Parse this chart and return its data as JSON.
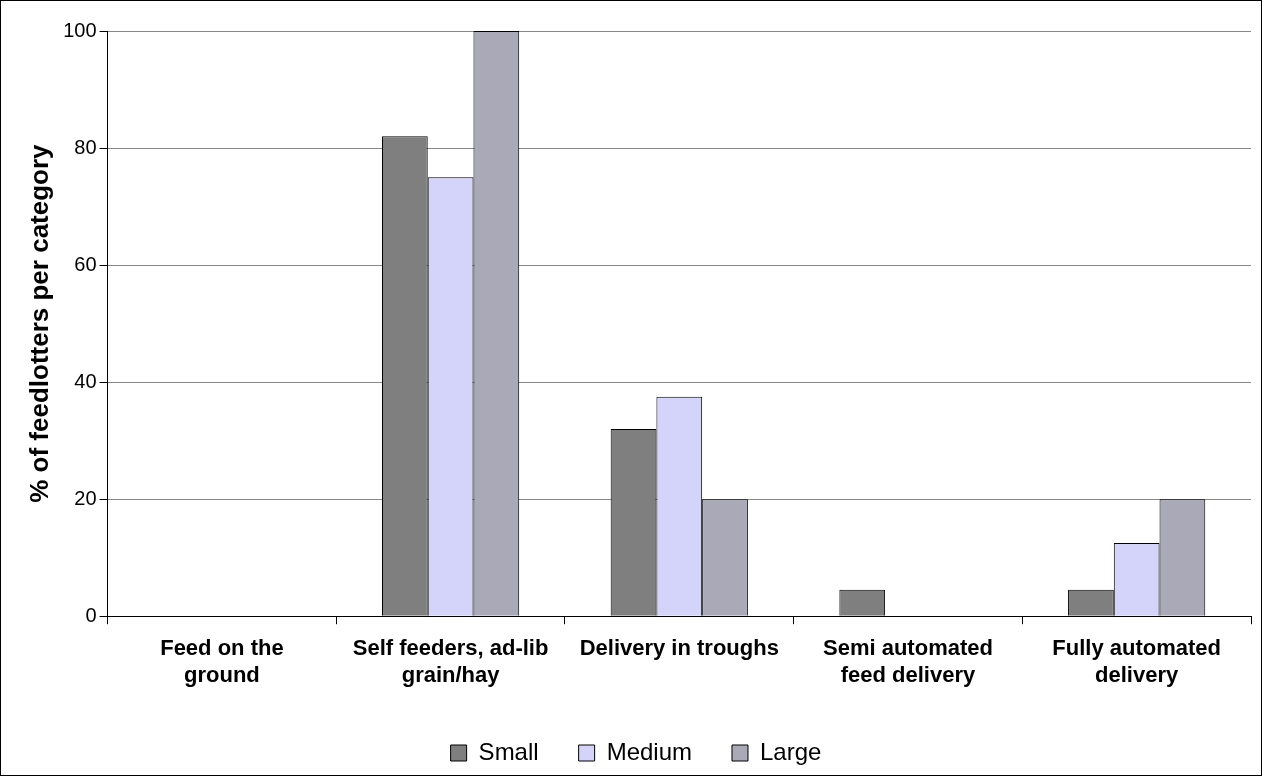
{
  "chart_data": {
    "type": "bar",
    "ylabel": "% of feedlotters per category",
    "categories": [
      "Feed on the ground",
      "Self feeders, ad-lib grain/hay",
      "Delivery in troughs",
      "Semi automated feed delivery",
      "Fully automated delivery"
    ],
    "series": [
      {
        "name": "Small",
        "color": "#7f7f7f",
        "values": [
          0,
          82,
          32,
          4.5,
          4.5
        ]
      },
      {
        "name": "Medium",
        "color": "#d4d4fa",
        "values": [
          0,
          75,
          37.5,
          0,
          12.5
        ]
      },
      {
        "name": "Large",
        "color": "#a9a9b8",
        "values": [
          0,
          100,
          20,
          0,
          20
        ]
      }
    ],
    "ylim": [
      0,
      100
    ],
    "yticks": [
      0,
      20,
      40,
      60,
      80,
      100
    ],
    "grid": "y",
    "legend": "bottom"
  }
}
